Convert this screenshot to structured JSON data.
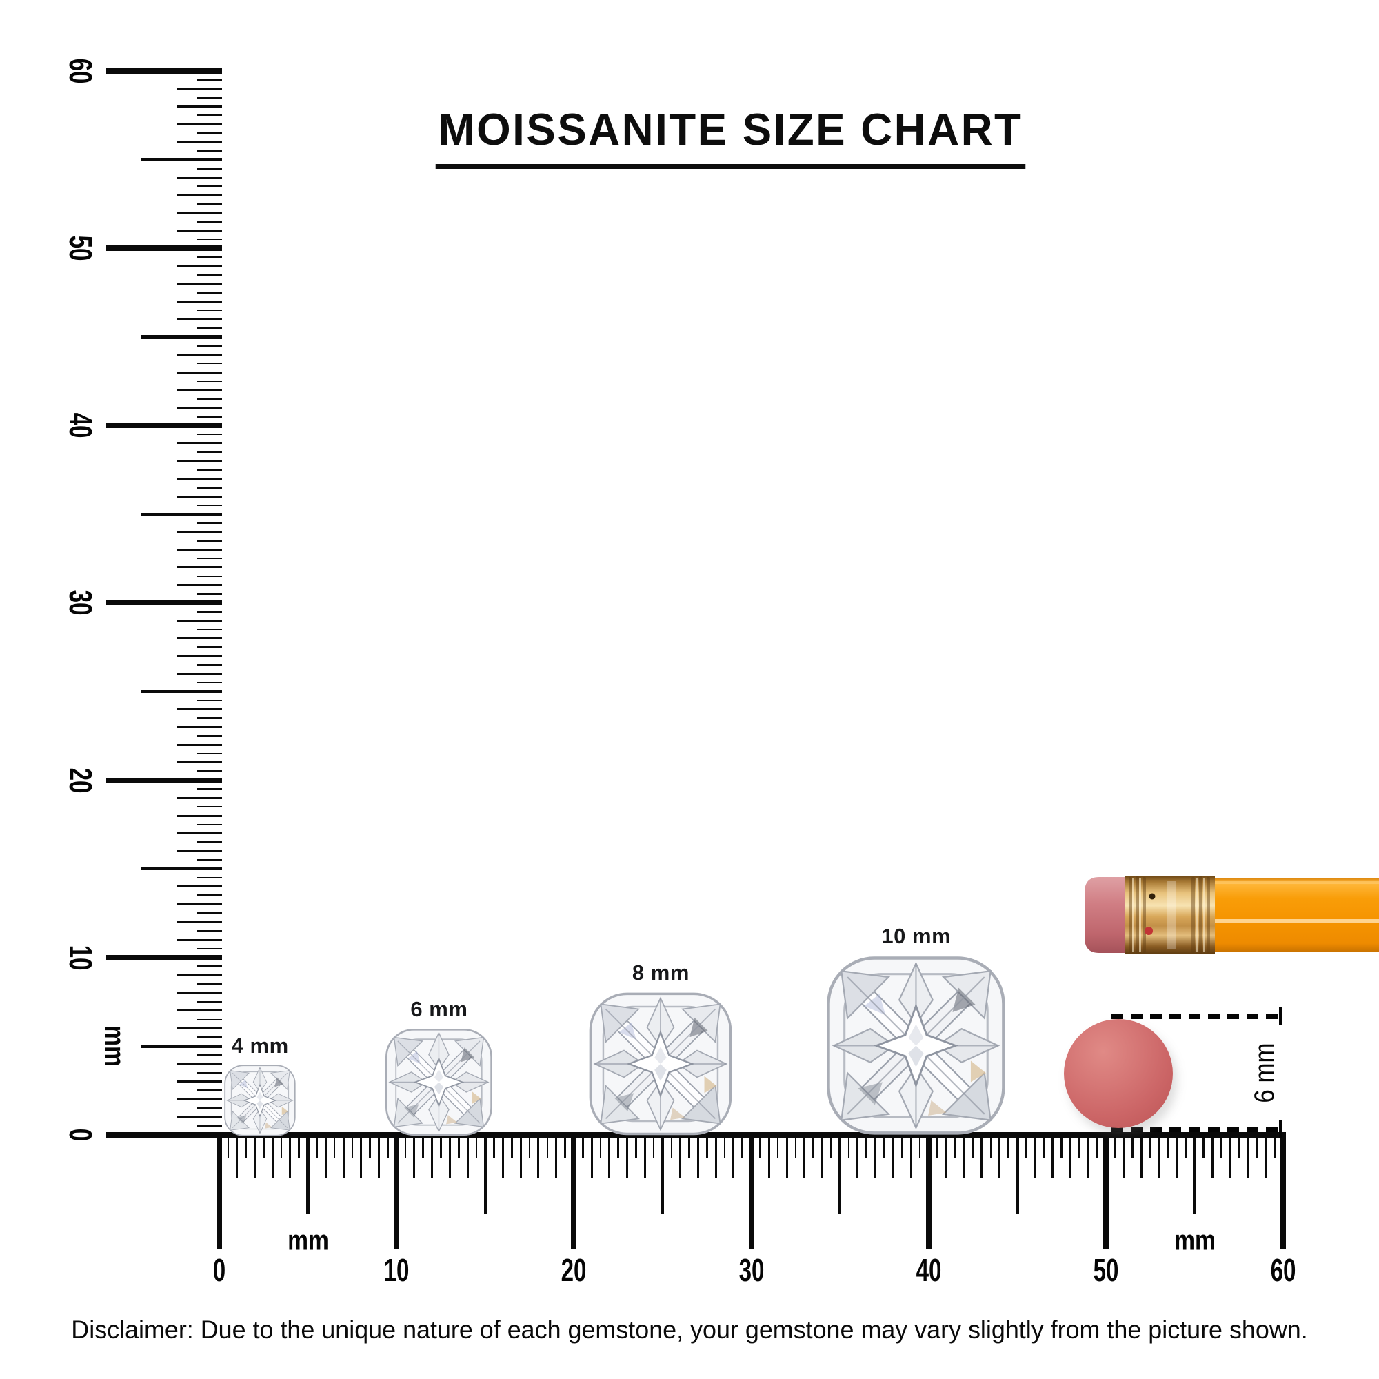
{
  "title": {
    "text": "MOISSANITE SIZE CHART"
  },
  "disclaimer": "Disclaimer: Due to the unique nature of each gemstone, your gemstone may vary slightly from the picture shown.",
  "rulers": {
    "unit_label": "mm",
    "horizontal": {
      "min_mm": 0,
      "max_mm": 60,
      "minor_step_mm": 0.5,
      "number_labels": [
        "0",
        "10",
        "20",
        "30",
        "40",
        "50",
        "60"
      ],
      "unit_label_positions_mm": [
        5,
        55
      ]
    },
    "vertical": {
      "min_mm": 0,
      "max_mm": 60,
      "minor_step_mm": 0.5,
      "number_labels": [
        "0",
        "10",
        "20",
        "30",
        "40",
        "50",
        "60"
      ],
      "unit_label_positions_mm": [
        5
      ]
    }
  },
  "gems": [
    {
      "label": "4 mm",
      "size_mm": 4,
      "center_mm": 2.3
    },
    {
      "label": "6 mm",
      "size_mm": 6,
      "center_mm": 12.4
    },
    {
      "label": "8 mm",
      "size_mm": 8,
      "center_mm": 24.9
    },
    {
      "label": "10 mm",
      "size_mm": 10,
      "center_mm": 39.3
    }
  ],
  "eraser_measure": {
    "label": "6 mm",
    "diameter_mm": 6,
    "center_mm": 50.7
  },
  "colors": {
    "ink": "#0a0a0a",
    "pencil_body_orange": "#f79b04",
    "pencil_ferrule_gold": "#d9a85a",
    "pencil_eraser_pink": "#cb7075",
    "eraser_disc_salmon": "#cc6667",
    "gem_facet_light": "#f5f6f8",
    "gem_facet_mid": "#dfe2e7",
    "gem_stroke": "#a9adb6"
  }
}
